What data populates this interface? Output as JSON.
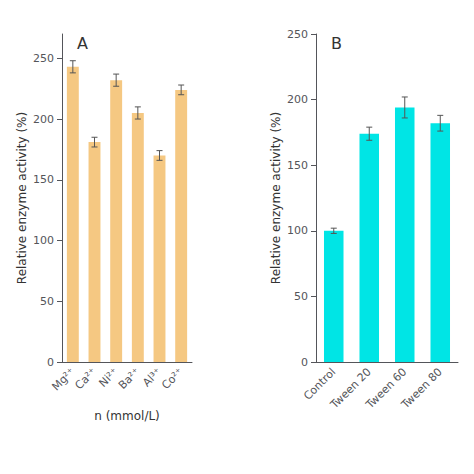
{
  "chart_data": [
    {
      "type": "bar",
      "annotations": [
        "A"
      ],
      "xlabel": "n (mmol/L)",
      "ylabel": "Relative enzyme activity (%)",
      "categories": [
        "Mg²⁺",
        "Ca²⁺",
        "Ni²⁺",
        "Ba²⁺",
        "Al³⁺",
        "Co²⁺"
      ],
      "values": [
        243,
        181,
        232,
        205,
        170,
        224
      ],
      "errors": [
        5,
        4,
        5,
        5,
        4,
        4
      ],
      "color": "#F5C882",
      "ylim": [
        0,
        270
      ],
      "yticks": [
        0,
        50,
        100,
        150,
        200,
        250
      ],
      "grid": false
    },
    {
      "type": "bar",
      "annotations": [
        "B"
      ],
      "ylabel": "Relative enzyme activity (%)",
      "categories": [
        "Control",
        "Tween 20",
        "Tween 60",
        "Tween 80"
      ],
      "values": [
        100,
        174,
        194,
        182
      ],
      "errors": [
        2,
        5,
        8,
        6
      ],
      "color": "#00E5E5",
      "ylim": [
        0,
        250
      ],
      "yticks": [
        0,
        50,
        100,
        150,
        200,
        250
      ],
      "grid": false
    }
  ]
}
